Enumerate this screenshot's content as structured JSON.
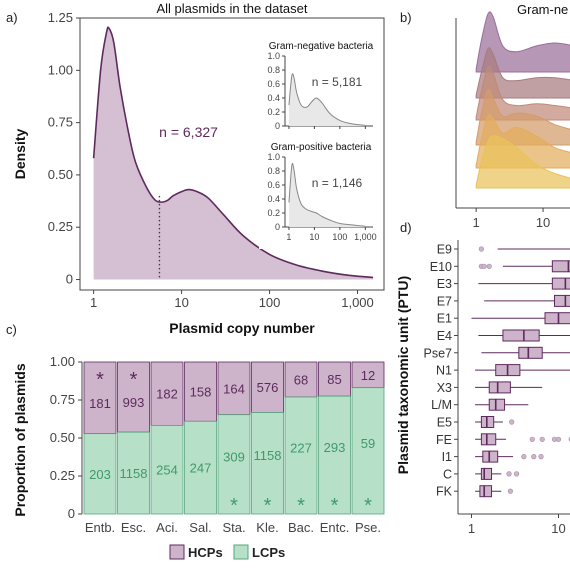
{
  "panel_labels": {
    "a": "a)",
    "b": "b)",
    "c": "c)",
    "d": "d)"
  },
  "colors": {
    "hcp_fill": "#cdb4cb",
    "hcp_line": "#5e2a5e",
    "lcp_fill": "#b7e0c8",
    "lcp_text": "#3f9a6b",
    "inset_fill": "#e8e8e8",
    "inset_line": "#888888"
  },
  "chart_data": [
    {
      "id": "a",
      "type": "area",
      "title": "All plasmids in the dataset",
      "xlabel": "Plasmid copy number",
      "ylabel": "Density",
      "x_scale": "log",
      "xlim": [
        0.7,
        2000
      ],
      "ylim": [
        -0.05,
        1.25
      ],
      "x_ticks": [
        1,
        10,
        100,
        1000
      ],
      "x_tick_labels": [
        "1",
        "10",
        "100",
        "1,000"
      ],
      "y_ticks": [
        0,
        0.25,
        0.5,
        0.75,
        1.0,
        1.25
      ],
      "y_tick_labels": [
        "0",
        "0.25",
        "0.50",
        "0.75",
        "1.00",
        "1.25"
      ],
      "annotation": "n = 6,327",
      "median_line_x": 5.6,
      "x": [
        1.0,
        1.2,
        1.4,
        1.5,
        1.7,
        2.0,
        2.5,
        3.0,
        4.0,
        5.0,
        6.0,
        7.0,
        8.0,
        10.0,
        12.0,
        15.0,
        20.0,
        30.0,
        50.0,
        100.0,
        200.0,
        400.0,
        800.0,
        1500.0
      ],
      "y": [
        0.58,
        1.0,
        1.18,
        1.2,
        1.13,
        0.92,
        0.7,
        0.56,
        0.44,
        0.38,
        0.37,
        0.38,
        0.4,
        0.42,
        0.43,
        0.42,
        0.39,
        0.31,
        0.21,
        0.12,
        0.07,
        0.04,
        0.02,
        0.01
      ]
    },
    {
      "id": "a-inset-gram-negative",
      "type": "area",
      "title": "Gram-negative bacteria",
      "annotation": "n = 5,181",
      "x_scale": "log",
      "ylim": [
        0,
        1.0
      ],
      "y_ticks": [
        0,
        0.2,
        0.4,
        0.6,
        0.8,
        1.0
      ],
      "y_tick_labels": [
        "0",
        "0.2",
        "0.4",
        "0.6",
        "0.8",
        "1.0"
      ],
      "x": [
        1.0,
        1.3,
        1.6,
        2.0,
        3.0,
        5.0,
        8.0,
        12.0,
        20.0,
        40.0,
        100.0,
        300.0,
        1000.0
      ],
      "y": [
        0.3,
        0.72,
        0.68,
        0.48,
        0.3,
        0.27,
        0.35,
        0.4,
        0.33,
        0.18,
        0.08,
        0.03,
        0.01
      ]
    },
    {
      "id": "a-inset-gram-positive",
      "type": "area",
      "title": "Gram-positive bacteria",
      "annotation": "n = 1,146",
      "x_scale": "log",
      "xlim": [
        0.7,
        2000
      ],
      "x_ticks": [
        1,
        10,
        100,
        1000
      ],
      "x_tick_labels": [
        "1",
        "10",
        "100",
        "1,000"
      ],
      "ylim": [
        0,
        1.0
      ],
      "y_ticks": [
        0,
        0.2,
        0.4,
        0.6,
        0.8,
        1.0
      ],
      "y_tick_labels": [
        "0",
        "0.2",
        "0.4",
        "0.6",
        "0.8",
        "1.0"
      ],
      "x": [
        1.0,
        1.3,
        1.6,
        2.0,
        3.0,
        5.0,
        8.0,
        12.0,
        20.0,
        40.0,
        100.0,
        300.0,
        1000.0
      ],
      "y": [
        0.35,
        0.88,
        0.8,
        0.55,
        0.33,
        0.25,
        0.22,
        0.2,
        0.15,
        0.1,
        0.05,
        0.03,
        0.01
      ]
    },
    {
      "id": "b",
      "type": "area",
      "title": "Gram-ne",
      "x_scale": "log",
      "x_ticks": [
        1,
        10
      ],
      "x_tick_labels": [
        "1",
        "10"
      ],
      "series": [
        {
          "color": "#9a6f98",
          "x": [
            1.0,
            1.2,
            1.5,
            1.8,
            2.5,
            4,
            8,
            15,
            30
          ],
          "y": [
            0.05,
            0.55,
            1.0,
            0.95,
            0.45,
            0.35,
            0.45,
            0.5,
            0.45
          ]
        },
        {
          "color": "#a87b7f",
          "x": [
            1.0,
            1.2,
            1.5,
            1.8,
            2.5,
            4,
            8,
            15,
            30
          ],
          "y": [
            0.05,
            0.45,
            0.85,
            0.75,
            0.35,
            0.3,
            0.35,
            0.35,
            0.3
          ]
        },
        {
          "color": "#c08a78",
          "x": [
            1.0,
            1.2,
            1.5,
            1.8,
            2.5,
            4,
            8,
            15,
            30
          ],
          "y": [
            0.05,
            0.5,
            0.9,
            0.8,
            0.35,
            0.25,
            0.28,
            0.25,
            0.2
          ]
        },
        {
          "color": "#d49b6a",
          "x": [
            1.0,
            1.2,
            1.5,
            1.8,
            2.5,
            4,
            8,
            15,
            30
          ],
          "y": [
            0.05,
            0.55,
            0.95,
            0.8,
            0.5,
            0.55,
            0.5,
            0.35,
            0.25
          ]
        },
        {
          "color": "#e3ad5c",
          "x": [
            1.0,
            1.2,
            1.5,
            1.8,
            2.5,
            4,
            8,
            15,
            30
          ],
          "y": [
            0.05,
            0.5,
            0.9,
            0.85,
            0.6,
            0.7,
            0.55,
            0.35,
            0.25
          ]
        },
        {
          "color": "#e9c25a",
          "x": [
            1.0,
            1.2,
            1.5,
            1.8,
            2.5,
            4,
            8,
            15,
            30
          ],
          "y": [
            0.05,
            0.45,
            0.8,
            0.9,
            0.85,
            0.7,
            0.4,
            0.25,
            0.15
          ]
        }
      ]
    },
    {
      "id": "c",
      "type": "bar",
      "ylabel": "Proportion of plasmids",
      "ylim": [
        0,
        1.0
      ],
      "y_ticks": [
        0,
        0.25,
        0.5,
        0.75,
        1.0
      ],
      "y_tick_labels": [
        "0",
        "0.25",
        "0.50",
        "0.75",
        "1.00"
      ],
      "categories": [
        "Entb.",
        "Esc.",
        "Aci.",
        "Sal.",
        "Sta.",
        "Kle.",
        "Bac.",
        "Entc.",
        "Pse."
      ],
      "legend": [
        "HCPs",
        "LCPs"
      ],
      "legend_position": "bottom",
      "series": [
        {
          "name": "HCPs",
          "values": [
            181,
            993,
            182,
            158,
            164,
            576,
            68,
            85,
            12
          ]
        },
        {
          "name": "LCPs",
          "values": [
            203,
            1158,
            254,
            247,
            309,
            1158,
            227,
            293,
            59
          ]
        }
      ],
      "stars_hcp": [
        true,
        true,
        false,
        false,
        false,
        false,
        false,
        false,
        false
      ],
      "stars_lcp": [
        false,
        false,
        false,
        false,
        true,
        true,
        true,
        true,
        true
      ],
      "star_symbol": "*"
    },
    {
      "id": "d",
      "type": "box",
      "ylabel": "Plasmid taxonomic unit (PTU)",
      "x_scale": "log",
      "x_ticks": [
        1,
        10
      ],
      "x_tick_labels": [
        "1",
        "10"
      ],
      "categories": [
        "E9",
        "E10",
        "E3",
        "E7",
        "E1",
        "E4",
        "Pse7",
        "N1",
        "X3",
        "L/M",
        "E5",
        "FE",
        "I1",
        "C",
        "FK"
      ],
      "boxes": [
        {
          "whisker_low": 2.0,
          "q1": 14,
          "median": 20,
          "q3": 30,
          "whisker_high": 60,
          "outliers": [
            1.3
          ]
        },
        {
          "whisker_low": 2.3,
          "q1": 8.5,
          "median": 13,
          "q3": 20,
          "whisker_high": 60,
          "outliers": [
            1.3,
            1.4,
            1.6
          ]
        },
        {
          "whisker_low": 1.2,
          "q1": 8.5,
          "median": 12,
          "q3": 18,
          "whisker_high": 60,
          "outliers": []
        },
        {
          "whisker_low": 1.4,
          "q1": 9,
          "median": 12,
          "q3": 18,
          "whisker_high": 60,
          "outliers": []
        },
        {
          "whisker_low": 1.0,
          "q1": 7,
          "median": 10,
          "q3": 15,
          "whisker_high": 60,
          "outliers": []
        },
        {
          "whisker_low": 1.2,
          "q1": 2.3,
          "median": 4,
          "q3": 6,
          "whisker_high": 25,
          "outliers": []
        },
        {
          "whisker_low": 1.3,
          "q1": 3.5,
          "median": 4.5,
          "q3": 6.5,
          "whisker_high": 25,
          "outliers": []
        },
        {
          "whisker_low": 1.1,
          "q1": 1.9,
          "median": 2.6,
          "q3": 3.6,
          "whisker_high": 15,
          "outliers": []
        },
        {
          "whisker_low": 1.1,
          "q1": 1.6,
          "median": 2.0,
          "q3": 2.8,
          "whisker_high": 6.5,
          "outliers": []
        },
        {
          "whisker_low": 1.1,
          "q1": 1.6,
          "median": 1.9,
          "q3": 2.4,
          "whisker_high": 4.5,
          "outliers": []
        },
        {
          "whisker_low": 1.1,
          "q1": 1.3,
          "median": 1.5,
          "q3": 1.8,
          "whisker_high": 2.3,
          "outliers": [
            2.9
          ]
        },
        {
          "whisker_low": 1.1,
          "q1": 1.3,
          "median": 1.5,
          "q3": 1.9,
          "whisker_high": 2.5,
          "outliers": [
            5,
            6.5,
            9,
            10,
            14,
            16
          ]
        },
        {
          "whisker_low": 1.1,
          "q1": 1.35,
          "median": 1.6,
          "q3": 2.0,
          "whisker_high": 3.0,
          "outliers": [
            4,
            5.2,
            6.3
          ]
        },
        {
          "whisker_low": 1.1,
          "q1": 1.3,
          "median": 1.4,
          "q3": 1.7,
          "whisker_high": 2.2,
          "outliers": [
            2.7,
            3.3
          ]
        },
        {
          "whisker_low": 1.1,
          "q1": 1.25,
          "median": 1.4,
          "q3": 1.7,
          "whisker_high": 2.2,
          "outliers": [
            2.8
          ]
        }
      ]
    }
  ]
}
